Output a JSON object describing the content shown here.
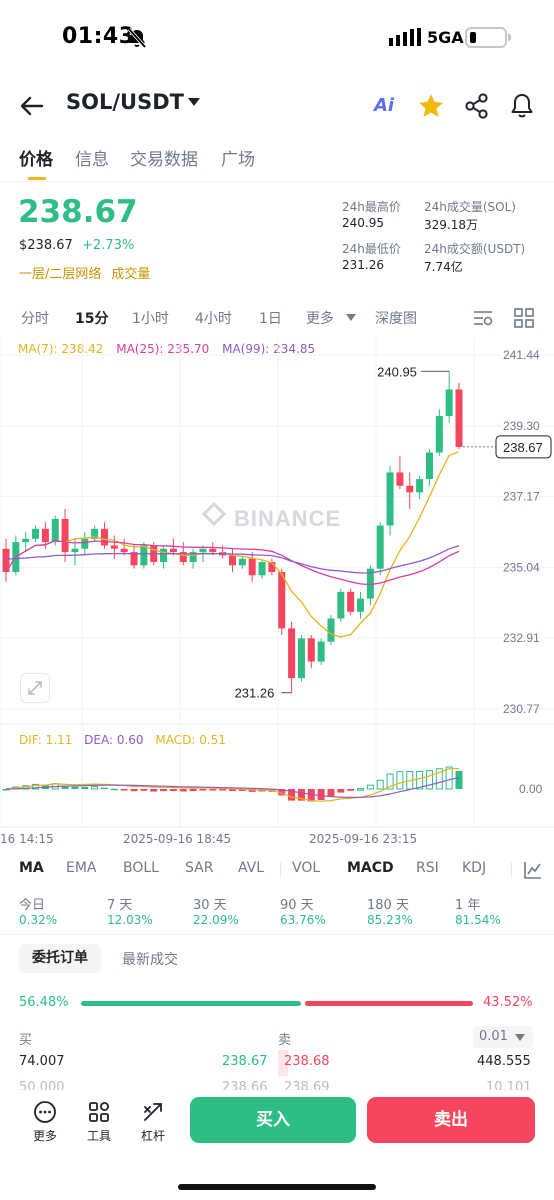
{
  "status": {
    "time": "01:43",
    "network": "5GA"
  },
  "header": {
    "pair": "SOL/USDT",
    "ai_label": "Ai"
  },
  "tabs": [
    "价格",
    "信息",
    "交易数据",
    "广场"
  ],
  "price": {
    "last": "238.67",
    "usd": "$238.67",
    "change": "+2.73%",
    "layer_link": "一层/二层网络",
    "layer_link2": "成交量"
  },
  "stats": {
    "high_label": "24h最高价",
    "high": "240.95",
    "vol_label": "24h成交量(SOL)",
    "vol": "329.18万",
    "low_label": "24h最低价",
    "low": "231.26",
    "turnover_label": "24h成交额(USDT)",
    "turnover": "7.74亿"
  },
  "intervals": [
    "分时",
    "15分",
    "1小时",
    "4小时",
    "1日",
    "更多",
    "深度图"
  ],
  "ma": {
    "ma7": "MA(7): 238.42",
    "ma25": "MA(25): 235.70",
    "ma99": "MA(99): 234.85"
  },
  "macd": {
    "dif": "DIF: 1.11",
    "dea": "DEA: 0.60",
    "macd": "MACD: 0.51"
  },
  "watermark": "BINANCE",
  "x_labels": [
    "16 14:15",
    "2025-09-16 18:45",
    "2025-09-16 23:15"
  ],
  "indicators": [
    "MA",
    "EMA",
    "BOLL",
    "SAR",
    "AVL",
    "VOL",
    "MACD",
    "RSI",
    "KDJ"
  ],
  "performance": [
    {
      "label": "今日",
      "value": "0.32%"
    },
    {
      "label": "7 天",
      "value": "12.03%"
    },
    {
      "label": "30 天",
      "value": "22.09%"
    },
    {
      "label": "90 天",
      "value": "63.76%"
    },
    {
      "label": "180 天",
      "value": "85.23%"
    },
    {
      "label": "1 年",
      "value": "81.54%"
    }
  ],
  "orderbook": {
    "tab_active": "委托订单",
    "tab_other": "最新成交",
    "buy_pct": "56.48%",
    "sell_pct": "43.52%",
    "buy_label": "买",
    "sell_label": "卖",
    "precision": "0.01",
    "row1": {
      "bid_qty": "74.007",
      "bid_price": "238.67",
      "ask_price": "238.68",
      "ask_qty": "448.555"
    },
    "row2_partial": {
      "bid_qty": "50.000",
      "bid_price": "238.66",
      "ask_price": "238.69",
      "ask_qty": "10.101"
    }
  },
  "bottom": {
    "more": "更多",
    "tools": "工具",
    "leverage": "杠杆",
    "buy": "买入",
    "sell": "卖出"
  },
  "colors": {
    "up": "#2ebd85",
    "down": "#f6465d",
    "accent": "#f0b90b",
    "ma7": "#e6b31e",
    "ma25": "#d63ea8",
    "ma99": "#8e5cc8"
  },
  "chart_data": [
    {
      "type": "candlestick",
      "title": "",
      "interval": "15分",
      "y_ticks": [
        241.44,
        239.3,
        237.17,
        235.04,
        232.91,
        230.77
      ],
      "ylim": [
        230.77,
        241.44
      ],
      "last_price": 238.67,
      "high_marker": 240.95,
      "low_marker": 231.26,
      "x_tick_labels": [
        "16 14:15",
        "2025-09-16 18:45",
        "2025-09-16 23:15"
      ],
      "candles": [
        [
          235.6,
          235.9,
          234.6,
          234.9
        ],
        [
          234.9,
          236.0,
          234.8,
          235.8
        ],
        [
          235.8,
          236.1,
          235.5,
          235.9
        ],
        [
          235.9,
          236.3,
          235.8,
          236.2
        ],
        [
          236.2,
          236.4,
          235.6,
          235.8
        ],
        [
          235.8,
          236.6,
          235.7,
          236.5
        ],
        [
          236.5,
          236.8,
          235.2,
          235.5
        ],
        [
          235.5,
          235.9,
          235.1,
          235.6
        ],
        [
          235.6,
          236.1,
          235.4,
          235.9
        ],
        [
          235.9,
          236.3,
          235.8,
          236.2
        ],
        [
          236.2,
          236.4,
          235.6,
          235.7
        ],
        [
          235.7,
          236.0,
          235.3,
          235.6
        ],
        [
          235.6,
          235.9,
          235.4,
          235.5
        ],
        [
          235.5,
          235.7,
          235.0,
          235.1
        ],
        [
          235.1,
          235.8,
          235.0,
          235.7
        ],
        [
          235.7,
          235.8,
          235.1,
          235.2
        ],
        [
          235.2,
          235.7,
          235.0,
          235.6
        ],
        [
          235.6,
          235.9,
          235.4,
          235.5
        ],
        [
          235.5,
          235.8,
          235.1,
          235.2
        ],
        [
          235.2,
          235.6,
          235.0,
          235.5
        ],
        [
          235.5,
          235.7,
          235.2,
          235.6
        ],
        [
          235.6,
          235.8,
          235.4,
          235.5
        ],
        [
          235.5,
          235.7,
          235.3,
          235.4
        ],
        [
          235.4,
          235.6,
          234.9,
          235.1
        ],
        [
          235.1,
          235.4,
          235.0,
          235.3
        ],
        [
          235.3,
          235.5,
          234.6,
          234.8
        ],
        [
          234.8,
          235.3,
          234.7,
          235.2
        ],
        [
          235.2,
          235.3,
          234.8,
          234.9
        ],
        [
          234.9,
          235.0,
          233.0,
          233.2
        ],
        [
          233.2,
          233.4,
          231.26,
          231.7
        ],
        [
          231.7,
          233.0,
          231.6,
          232.9
        ],
        [
          232.9,
          233.0,
          232.0,
          232.2
        ],
        [
          232.2,
          232.9,
          232.1,
          232.8
        ],
        [
          232.8,
          233.6,
          232.7,
          233.5
        ],
        [
          233.5,
          234.4,
          233.4,
          234.3
        ],
        [
          234.3,
          234.4,
          233.6,
          233.7
        ],
        [
          233.7,
          234.3,
          233.5,
          234.1
        ],
        [
          234.1,
          235.1,
          233.9,
          235.0
        ],
        [
          235.0,
          236.4,
          234.8,
          236.3
        ],
        [
          236.3,
          238.1,
          236.0,
          237.9
        ],
        [
          237.9,
          238.4,
          237.4,
          237.5
        ],
        [
          237.5,
          237.9,
          236.8,
          237.3
        ],
        [
          237.3,
          237.8,
          237.1,
          237.7
        ],
        [
          237.7,
          238.6,
          237.5,
          238.5
        ],
        [
          238.5,
          239.8,
          238.4,
          239.6
        ],
        [
          239.6,
          240.95,
          239.4,
          240.4
        ],
        [
          240.4,
          240.6,
          238.6,
          238.67
        ]
      ],
      "ma_values": {
        "ma7": 238.42,
        "ma25": 235.7,
        "ma99": 234.85
      }
    },
    {
      "type": "bar",
      "title": "MACD",
      "series": [
        {
          "name": "DIF",
          "last": 1.11
        },
        {
          "name": "DEA",
          "last": 0.6
        },
        {
          "name": "MACD",
          "last": 0.51
        }
      ],
      "y_ticks": [
        0.0
      ]
    }
  ]
}
